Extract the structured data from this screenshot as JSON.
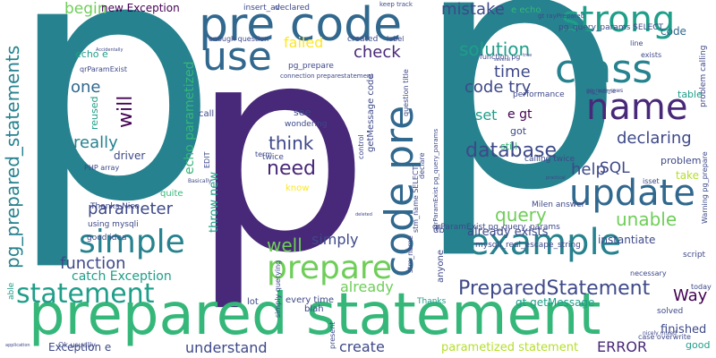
{
  "colors": {
    "background": "#ffffff",
    "palette": [
      "#440154",
      "#482878",
      "#3e4989",
      "#31688e",
      "#26828e",
      "#1f9e89",
      "#35b779",
      "#6ece58",
      "#b5de2b",
      "#fde725"
    ]
  },
  "words": [
    {
      "text": "p",
      "color": "#26828e"
    },
    {
      "text": "p",
      "color": "#26828e"
    },
    {
      "text": "p",
      "color": "#482878"
    },
    {
      "text": "prepared statement",
      "color": "#35b779"
    },
    {
      "text": "pre code",
      "color": "#31688e"
    },
    {
      "text": "strong",
      "color": "#1f9e89"
    },
    {
      "text": "use",
      "color": "#31688e"
    },
    {
      "text": "class",
      "color": "#26828e"
    },
    {
      "text": "name",
      "color": "#482878"
    },
    {
      "text": "update",
      "color": "#31688e"
    },
    {
      "text": "code pre",
      "color": "#31688e"
    },
    {
      "text": "example",
      "color": "#26828e"
    },
    {
      "text": "prepare",
      "color": "#6ece58"
    },
    {
      "text": "simple",
      "color": "#26828e"
    },
    {
      "text": "statement",
      "color": "#1f9e89"
    },
    {
      "text": "pg_prepared_statements",
      "color": "#26828e"
    },
    {
      "text": "PreparedStatement",
      "color": "#3e4989"
    },
    {
      "text": "database",
      "color": "#3e4989"
    },
    {
      "text": "need",
      "color": "#482878"
    },
    {
      "text": "think",
      "color": "#3e4989"
    },
    {
      "text": "failed",
      "color": "#fde725"
    },
    {
      "text": "check",
      "color": "#482878"
    },
    {
      "text": "solution",
      "color": "#1f9e89"
    },
    {
      "text": "time",
      "color": "#3e4989"
    },
    {
      "text": "code try",
      "color": "#3e4989"
    },
    {
      "text": "mistake",
      "color": "#3e4989"
    },
    {
      "text": "begin",
      "color": "#6ece58"
    },
    {
      "text": "one",
      "color": "#31688e"
    },
    {
      "text": "will",
      "color": "#440154"
    },
    {
      "text": "really",
      "color": "#26828e"
    },
    {
      "text": "parameter",
      "color": "#3e4989"
    },
    {
      "text": "function",
      "color": "#3e4989"
    },
    {
      "text": "well",
      "color": "#6ece58"
    },
    {
      "text": "simply",
      "color": "#3e4989"
    },
    {
      "text": "already",
      "color": "#6ece58"
    },
    {
      "text": "query",
      "color": "#6ece58"
    },
    {
      "text": "unable",
      "color": "#6ece58"
    },
    {
      "text": "help",
      "color": "#3e4989"
    },
    {
      "text": "SQL",
      "color": "#3e4989"
    },
    {
      "text": "declaring",
      "color": "#3e4989"
    },
    {
      "text": "Way",
      "color": "#440154"
    },
    {
      "text": "create",
      "color": "#3e4989"
    },
    {
      "text": "understand",
      "color": "#3e4989"
    },
    {
      "text": "catch Exception",
      "color": "#1f9e89"
    },
    {
      "text": "ERROR",
      "color": "#482878"
    },
    {
      "text": "set",
      "color": "#1f9e89"
    },
    {
      "text": "e gt",
      "color": "#440154"
    },
    {
      "text": "code",
      "color": "#31688e"
    },
    {
      "text": "echo parametized",
      "color": "#35b779"
    },
    {
      "text": "throw new",
      "color": "#1f9e89"
    },
    {
      "text": "new Exception",
      "color": "#440154"
    },
    {
      "text": "instantiate",
      "color": "#3e4989"
    },
    {
      "text": "already exists",
      "color": "#3e4989"
    },
    {
      "text": "finished",
      "color": "#3e4989"
    },
    {
      "text": "parametized statement",
      "color": "#b5de2b"
    },
    {
      "text": "gt getMessage",
      "color": "#1f9e89"
    },
    {
      "text": "Exception e",
      "color": "#3e4989"
    },
    {
      "text": "table",
      "color": "#1f9e89"
    },
    {
      "text": "problem",
      "color": "#3e4989"
    },
    {
      "text": "take",
      "color": "#b5de2b"
    },
    {
      "text": "got",
      "color": "#3e4989"
    },
    {
      "text": "still",
      "color": "#35b779"
    },
    {
      "text": "driver",
      "color": "#3e4989"
    },
    {
      "text": "reused",
      "color": "#1f9e89"
    },
    {
      "text": "echo e",
      "color": "#1f9e89"
    },
    {
      "text": "good",
      "color": "#1f9e89"
    },
    {
      "text": "see",
      "color": "#3e4989"
    },
    {
      "text": "know",
      "color": "#fde725"
    },
    {
      "text": "call",
      "color": "#3e4989"
    },
    {
      "text": "quite",
      "color": "#35b779"
    },
    {
      "text": "lot",
      "color": "#3e4989"
    },
    {
      "text": "blah",
      "color": "#3e4989"
    },
    {
      "text": "every time",
      "color": "#3e4989"
    },
    {
      "text": "anyone",
      "color": "#3e4989"
    },
    {
      "text": "db",
      "color": "#3e4989"
    },
    {
      "text": "e echo",
      "color": "#35b779"
    },
    {
      "text": "twice",
      "color": "#3e4989"
    },
    {
      "text": "pg_prepare",
      "color": "#3e4989"
    },
    {
      "text": "insert_av",
      "color": "#3e4989"
    },
    {
      "text": "declared",
      "color": "#3e4989"
    },
    {
      "text": "created",
      "color": "#3e4989"
    },
    {
      "text": "wondering",
      "color": "#3e4989"
    },
    {
      "text": "calling twice",
      "color": "#3e4989"
    },
    {
      "text": "performance",
      "color": "#3e4989"
    },
    {
      "text": "getMessage code",
      "color": "#3e4989"
    },
    {
      "text": "mysqli_real_escape_string",
      "color": "#3e4989"
    },
    {
      "text": "qrParamExist pg_query_params",
      "color": "#3e4989"
    },
    {
      "text": "pg_query_params SELECT",
      "color": "#3e4989"
    },
    {
      "text": "Thanks Nico",
      "color": "#3e4989"
    },
    {
      "text": "good idea",
      "color": "#3e4989"
    },
    {
      "text": "using mysqli",
      "color": "#3e4989"
    },
    {
      "text": "PHP array",
      "color": "#3e4989"
    },
    {
      "text": "qrParamExist",
      "color": "#3e4989"
    },
    {
      "text": "simply querying",
      "color": "#3e4989"
    },
    {
      "text": "Milen answer",
      "color": "#3e4989"
    },
    {
      "text": "case overwrite",
      "color": "#3e4989"
    },
    {
      "text": "necessary",
      "color": "#3e4989"
    },
    {
      "text": "script",
      "color": "#3e4989"
    },
    {
      "text": "solved",
      "color": "#3e4989"
    },
    {
      "text": "enough question",
      "color": "#3e4989"
    },
    {
      "text": "label",
      "color": "#3e4989"
    },
    {
      "text": "Ok usually",
      "color": "#3e4989"
    },
    {
      "text": "present",
      "color": "#3e4989"
    },
    {
      "text": "Thanks",
      "color": "#1f9e89"
    },
    {
      "text": "able",
      "color": "#1f9e89"
    },
    {
      "text": "problem calling",
      "color": "#3e4989"
    },
    {
      "text": "function pg",
      "color": "#3e4989"
    },
    {
      "text": "Warning pg_prepare",
      "color": "#3e4989"
    },
    {
      "text": "isset",
      "color": "#3e4989"
    },
    {
      "text": "stm_name",
      "color": "#3e4989"
    },
    {
      "text": "term",
      "color": "#3e4989"
    },
    {
      "text": "control",
      "color": "#3e4989"
    },
    {
      "text": "EDIT",
      "color": "#3e4989"
    },
    {
      "text": "today",
      "color": "#3e4989"
    },
    {
      "text": "line",
      "color": "#3e4989"
    },
    {
      "text": "exists",
      "color": "#3e4989"
    },
    {
      "text": "declare",
      "color": "#3e4989"
    },
    {
      "text": "question title",
      "color": "#3e4989"
    },
    {
      "text": "connection preparestatement",
      "color": "#3e4989"
    },
    {
      "text": "gt rayPrepared",
      "color": "#3e4989"
    },
    {
      "text": "pg_name",
      "color": "#3e4989"
    },
    {
      "text": "keep track",
      "color": "#3e4989"
    },
    {
      "text": "stm_name SELECT",
      "color": "#3e4989"
    },
    {
      "text": "qrParamExist pg_query_params",
      "color": "#3e4989"
    },
    {
      "text": "Basically",
      "color": "#3e4989"
    },
    {
      "text": "application",
      "color": "#3e4989"
    },
    {
      "text": "Accidentally",
      "color": "#3e4989"
    },
    {
      "text": "nicely mixed",
      "color": "#3e4989"
    },
    {
      "text": "practical",
      "color": "#3e4989"
    },
    {
      "text": "true",
      "color": "#3e4989"
    },
    {
      "text": "deleted",
      "color": "#3e4989"
    },
    {
      "text": "several",
      "color": "#3e4989"
    },
    {
      "text": "pg_num_rows",
      "color": "#3e4989"
    }
  ]
}
